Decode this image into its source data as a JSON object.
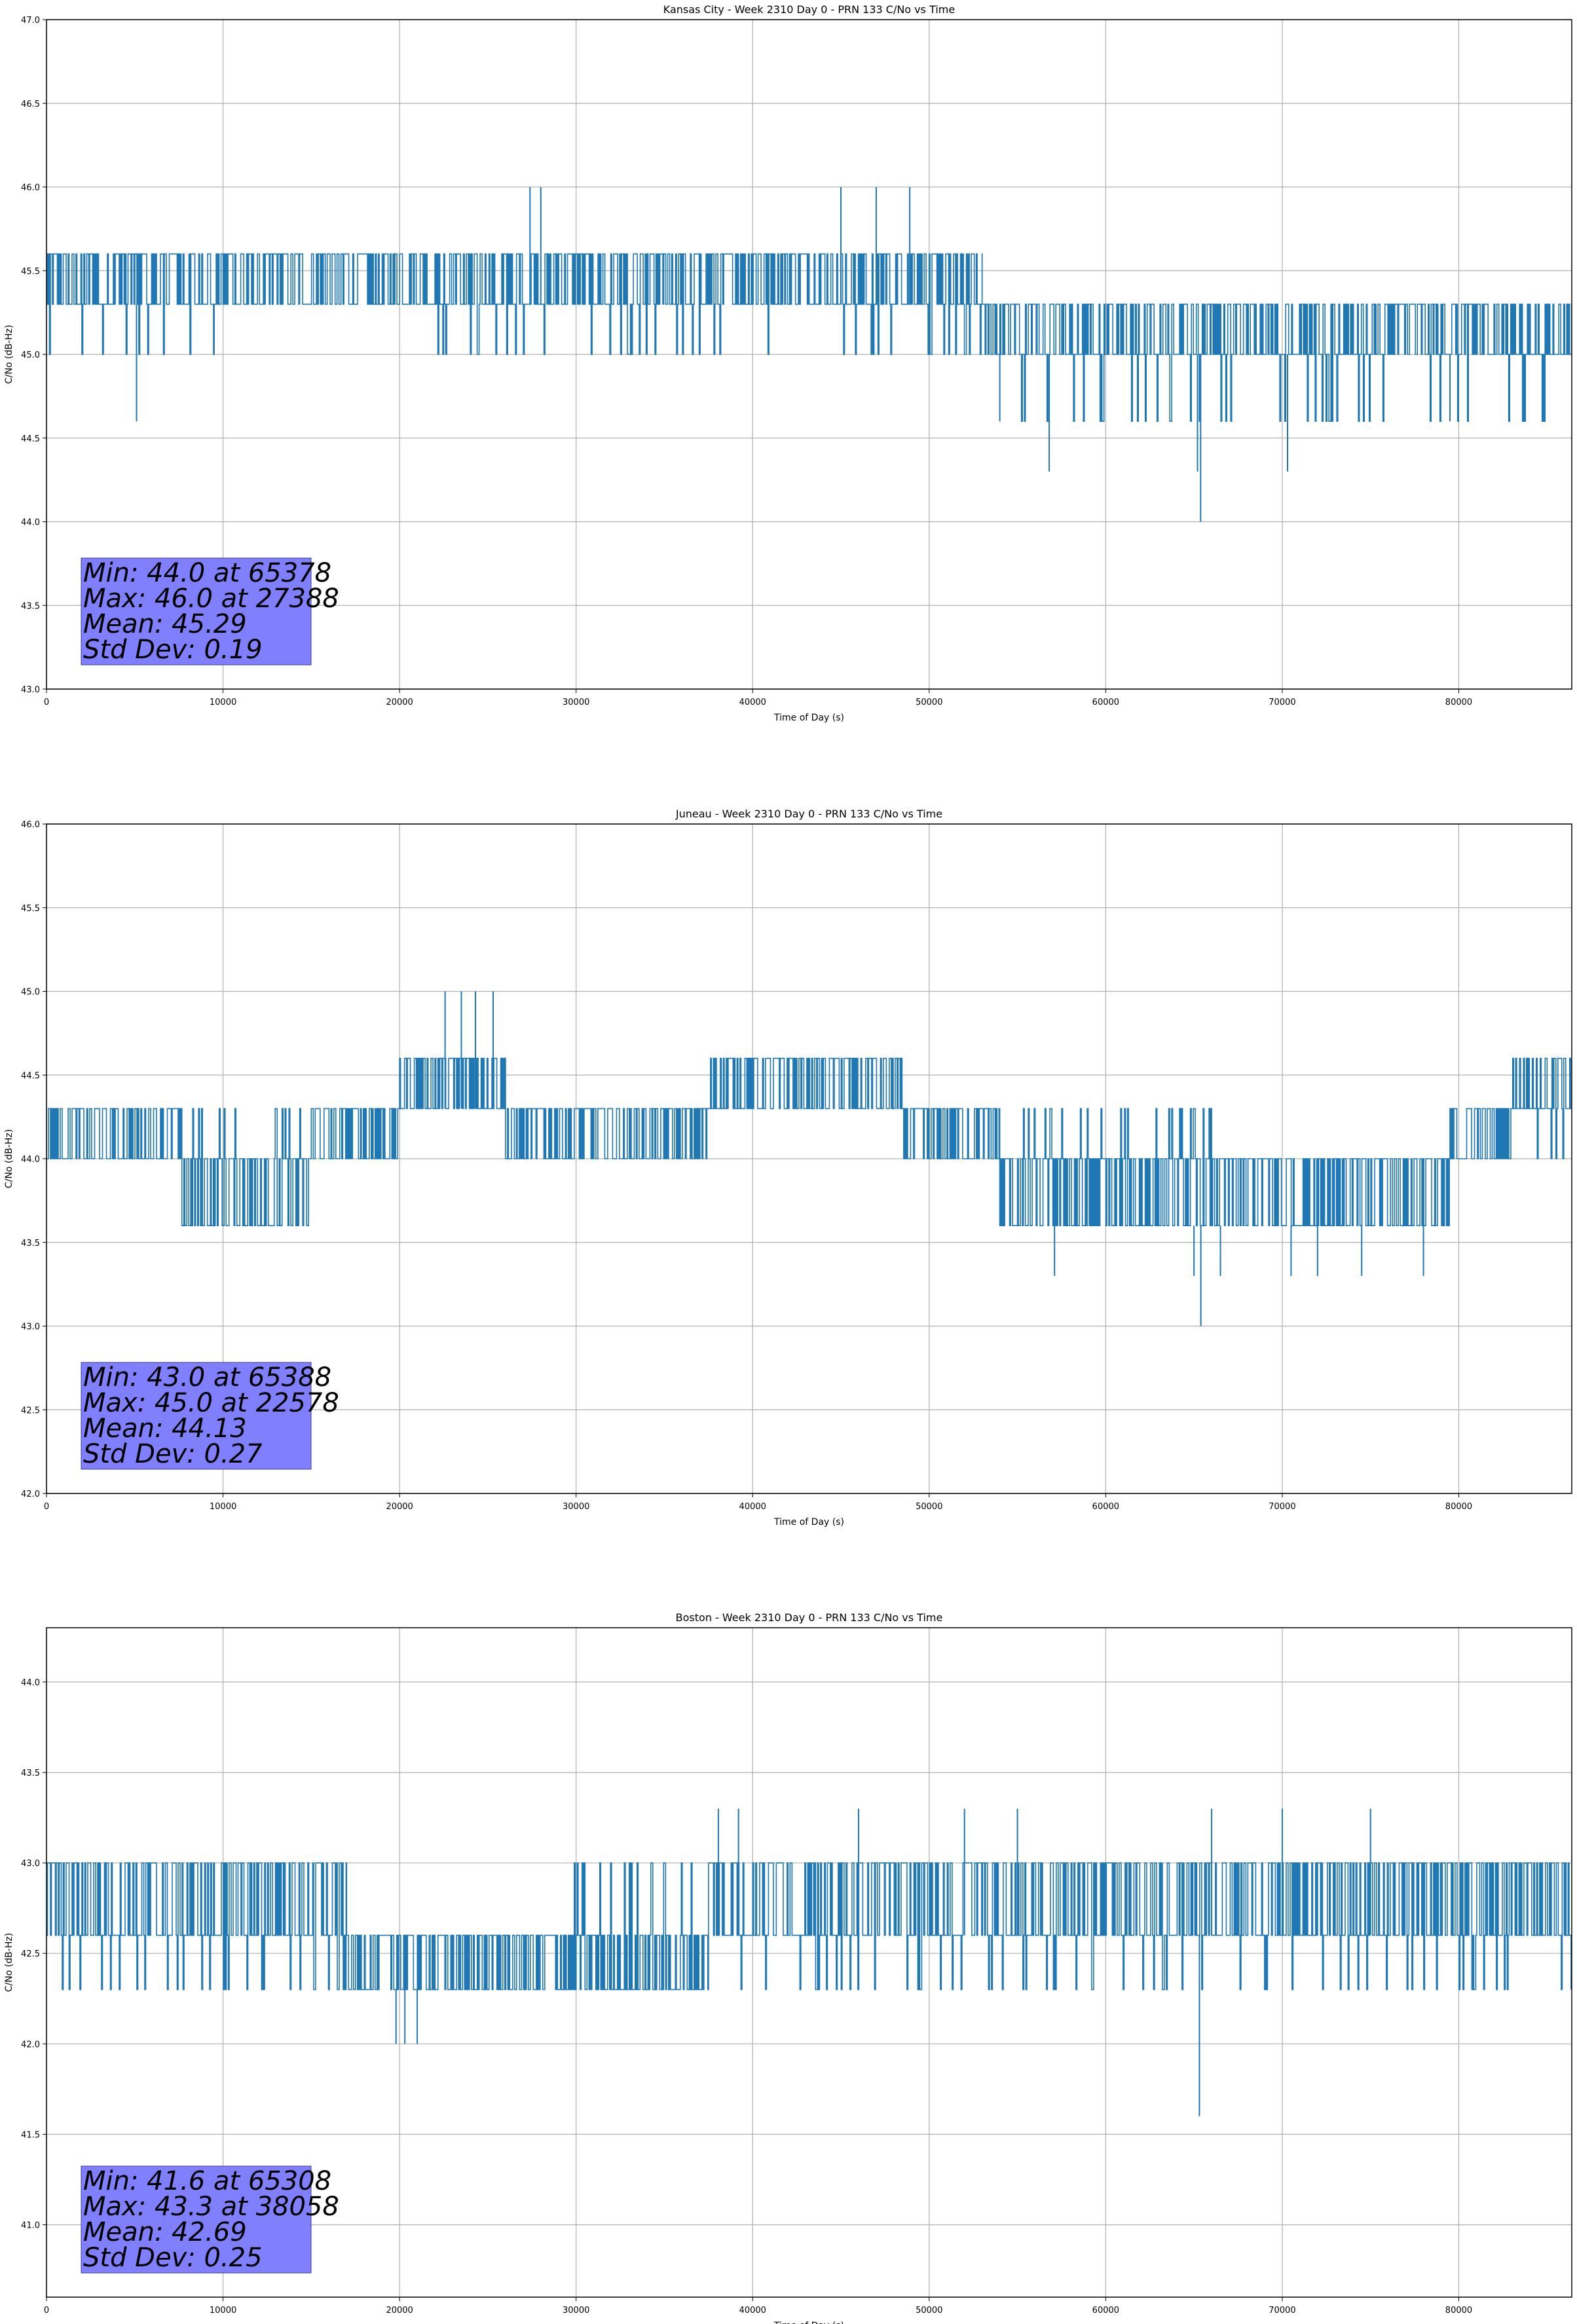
{
  "chart_data": [
    {
      "type": "line",
      "title": "Kansas City - Week 2310 Day 0 - PRN 133 C/No vs Time",
      "xlabel": "Time of Day (s)",
      "ylabel": "C/No (dB-Hz)",
      "xlim": [
        0,
        86400
      ],
      "ylim": [
        43.0,
        47.0
      ],
      "xticks": [
        0,
        10000,
        20000,
        30000,
        40000,
        50000,
        60000,
        70000,
        80000
      ],
      "xtick_labels": [
        "0",
        "10000",
        "20000",
        "30000",
        "40000",
        "50000",
        "60000",
        "70000",
        "80000"
      ],
      "yticks": [
        43.0,
        43.5,
        44.0,
        44.5,
        45.0,
        45.5,
        46.0,
        46.5,
        47.0
      ],
      "ytick_labels": [
        "43.0",
        "43.5",
        "44.0",
        "44.5",
        "45.0",
        "45.5",
        "46.0",
        "46.5",
        "47.0"
      ],
      "grid": true,
      "color": "#1f77b4",
      "series_description": "C/No samples oscillating between quantized levels",
      "segments": [
        {
          "x_start": 0,
          "x_end": 9500,
          "levels": [
            45.3,
            45.6,
            45.0
          ]
        },
        {
          "x_start": 9500,
          "x_end": 20000,
          "levels": [
            45.3,
            45.6
          ]
        },
        {
          "x_start": 20000,
          "x_end": 53000,
          "levels": [
            45.3,
            45.6,
            45.0
          ]
        },
        {
          "x_start": 53000,
          "x_end": 86400,
          "levels": [
            45.0,
            45.3,
            44.6
          ]
        }
      ],
      "spikes": [
        {
          "x": 5100,
          "y": 44.6
        },
        {
          "x": 27388,
          "y": 46.0
        },
        {
          "x": 28000,
          "y": 46.0
        },
        {
          "x": 45000,
          "y": 46.0
        },
        {
          "x": 47000,
          "y": 46.0
        },
        {
          "x": 48900,
          "y": 46.0
        },
        {
          "x": 54000,
          "y": 44.6
        },
        {
          "x": 56800,
          "y": 44.3
        },
        {
          "x": 65378,
          "y": 44.0
        },
        {
          "x": 65200,
          "y": 44.3
        },
        {
          "x": 70300,
          "y": 44.3
        },
        {
          "x": 79500,
          "y": 44.6
        }
      ],
      "annotation": [
        "Min: 44.0 at 65378",
        "Max: 46.0 at 27388",
        "Mean: 45.29",
        "Std Dev: 0.19"
      ]
    },
    {
      "type": "line",
      "title": "Juneau - Week 2310 Day 0 - PRN 133 C/No vs Time",
      "xlabel": "Time of Day (s)",
      "ylabel": "C/No (dB-Hz)",
      "xlim": [
        0,
        86400
      ],
      "ylim": [
        42.0,
        46.0
      ],
      "xticks": [
        0,
        10000,
        20000,
        30000,
        40000,
        50000,
        60000,
        70000,
        80000
      ],
      "xtick_labels": [
        "0",
        "10000",
        "20000",
        "30000",
        "40000",
        "50000",
        "60000",
        "70000",
        "80000"
      ],
      "yticks": [
        42.0,
        42.5,
        43.0,
        43.5,
        44.0,
        44.5,
        45.0,
        45.5,
        46.0
      ],
      "ytick_labels": [
        "42.0",
        "42.5",
        "43.0",
        "43.5",
        "44.0",
        "44.5",
        "45.0",
        "45.5",
        "46.0"
      ],
      "grid": true,
      "color": "#1f77b4",
      "series_description": "C/No samples oscillating between quantized levels",
      "segments": [
        {
          "x_start": 0,
          "x_end": 7500,
          "levels": [
            44.0,
            44.3
          ]
        },
        {
          "x_start": 7500,
          "x_end": 15000,
          "levels": [
            43.6,
            44.0,
            44.3
          ]
        },
        {
          "x_start": 15000,
          "x_end": 20000,
          "levels": [
            44.0,
            44.3
          ]
        },
        {
          "x_start": 20000,
          "x_end": 26000,
          "levels": [
            44.3,
            44.6
          ]
        },
        {
          "x_start": 26000,
          "x_end": 37500,
          "levels": [
            44.0,
            44.3
          ]
        },
        {
          "x_start": 37500,
          "x_end": 48500,
          "levels": [
            44.3,
            44.6
          ]
        },
        {
          "x_start": 48500,
          "x_end": 54000,
          "levels": [
            44.0,
            44.3
          ]
        },
        {
          "x_start": 54000,
          "x_end": 66000,
          "levels": [
            43.6,
            44.0,
            44.3
          ]
        },
        {
          "x_start": 66000,
          "x_end": 79500,
          "levels": [
            43.6,
            44.0
          ]
        },
        {
          "x_start": 79500,
          "x_end": 83000,
          "levels": [
            44.0,
            44.3
          ]
        },
        {
          "x_start": 83000,
          "x_end": 86400,
          "levels": [
            44.3,
            44.6,
            44.0
          ]
        }
      ],
      "spikes": [
        {
          "x": 22578,
          "y": 45.0
        },
        {
          "x": 23500,
          "y": 45.0
        },
        {
          "x": 24300,
          "y": 45.0
        },
        {
          "x": 25300,
          "y": 45.0
        },
        {
          "x": 57100,
          "y": 43.3
        },
        {
          "x": 65388,
          "y": 43.0
        },
        {
          "x": 65000,
          "y": 43.3
        },
        {
          "x": 66500,
          "y": 43.3
        },
        {
          "x": 70500,
          "y": 43.3
        },
        {
          "x": 72000,
          "y": 43.3
        },
        {
          "x": 74500,
          "y": 43.3
        },
        {
          "x": 78000,
          "y": 43.3
        }
      ],
      "annotation": [
        "Min: 43.0 at 65388",
        "Max: 45.0 at 22578",
        "Mean: 44.13",
        "Std Dev: 0.27"
      ]
    },
    {
      "type": "line",
      "title": "Boston - Week 2310 Day 0 - PRN 133 C/No vs Time",
      "xlabel": "Time of Day (s)",
      "ylabel": "C/No (dB-Hz)",
      "xlim": [
        0,
        86400
      ],
      "ylim": [
        40.6,
        44.3
      ],
      "xticks": [
        0,
        10000,
        20000,
        30000,
        40000,
        50000,
        60000,
        70000,
        80000
      ],
      "xtick_labels": [
        "0",
        "10000",
        "20000",
        "30000",
        "40000",
        "50000",
        "60000",
        "70000",
        "80000"
      ],
      "yticks": [
        41.0,
        41.5,
        42.0,
        42.5,
        43.0,
        43.5,
        44.0
      ],
      "ytick_labels": [
        "41.0",
        "41.5",
        "42.0",
        "42.5",
        "43.0",
        "43.5",
        "44.0"
      ],
      "grid": true,
      "color": "#1f77b4",
      "series_description": "C/No samples oscillating between quantized levels",
      "segments": [
        {
          "x_start": 0,
          "x_end": 17000,
          "levels": [
            42.6,
            43.0,
            42.3
          ]
        },
        {
          "x_start": 17000,
          "x_end": 28000,
          "levels": [
            42.3,
            42.6
          ]
        },
        {
          "x_start": 28000,
          "x_end": 37500,
          "levels": [
            42.3,
            42.6,
            43.0
          ]
        },
        {
          "x_start": 37500,
          "x_end": 86400,
          "levels": [
            42.6,
            43.0,
            42.3
          ]
        }
      ],
      "spikes": [
        {
          "x": 19800,
          "y": 42.0
        },
        {
          "x": 20300,
          "y": 42.0
        },
        {
          "x": 21000,
          "y": 42.0
        },
        {
          "x": 38058,
          "y": 43.3
        },
        {
          "x": 39200,
          "y": 43.3
        },
        {
          "x": 46000,
          "y": 43.3
        },
        {
          "x": 52000,
          "y": 43.3
        },
        {
          "x": 55000,
          "y": 43.3
        },
        {
          "x": 65308,
          "y": 41.6
        },
        {
          "x": 66000,
          "y": 43.3
        },
        {
          "x": 70000,
          "y": 43.3
        },
        {
          "x": 75000,
          "y": 43.3
        }
      ],
      "annotation": [
        "Min: 41.6 at 65308",
        "Max: 43.3 at 38058",
        "Mean: 42.69",
        "Std Dev: 0.25"
      ]
    }
  ]
}
